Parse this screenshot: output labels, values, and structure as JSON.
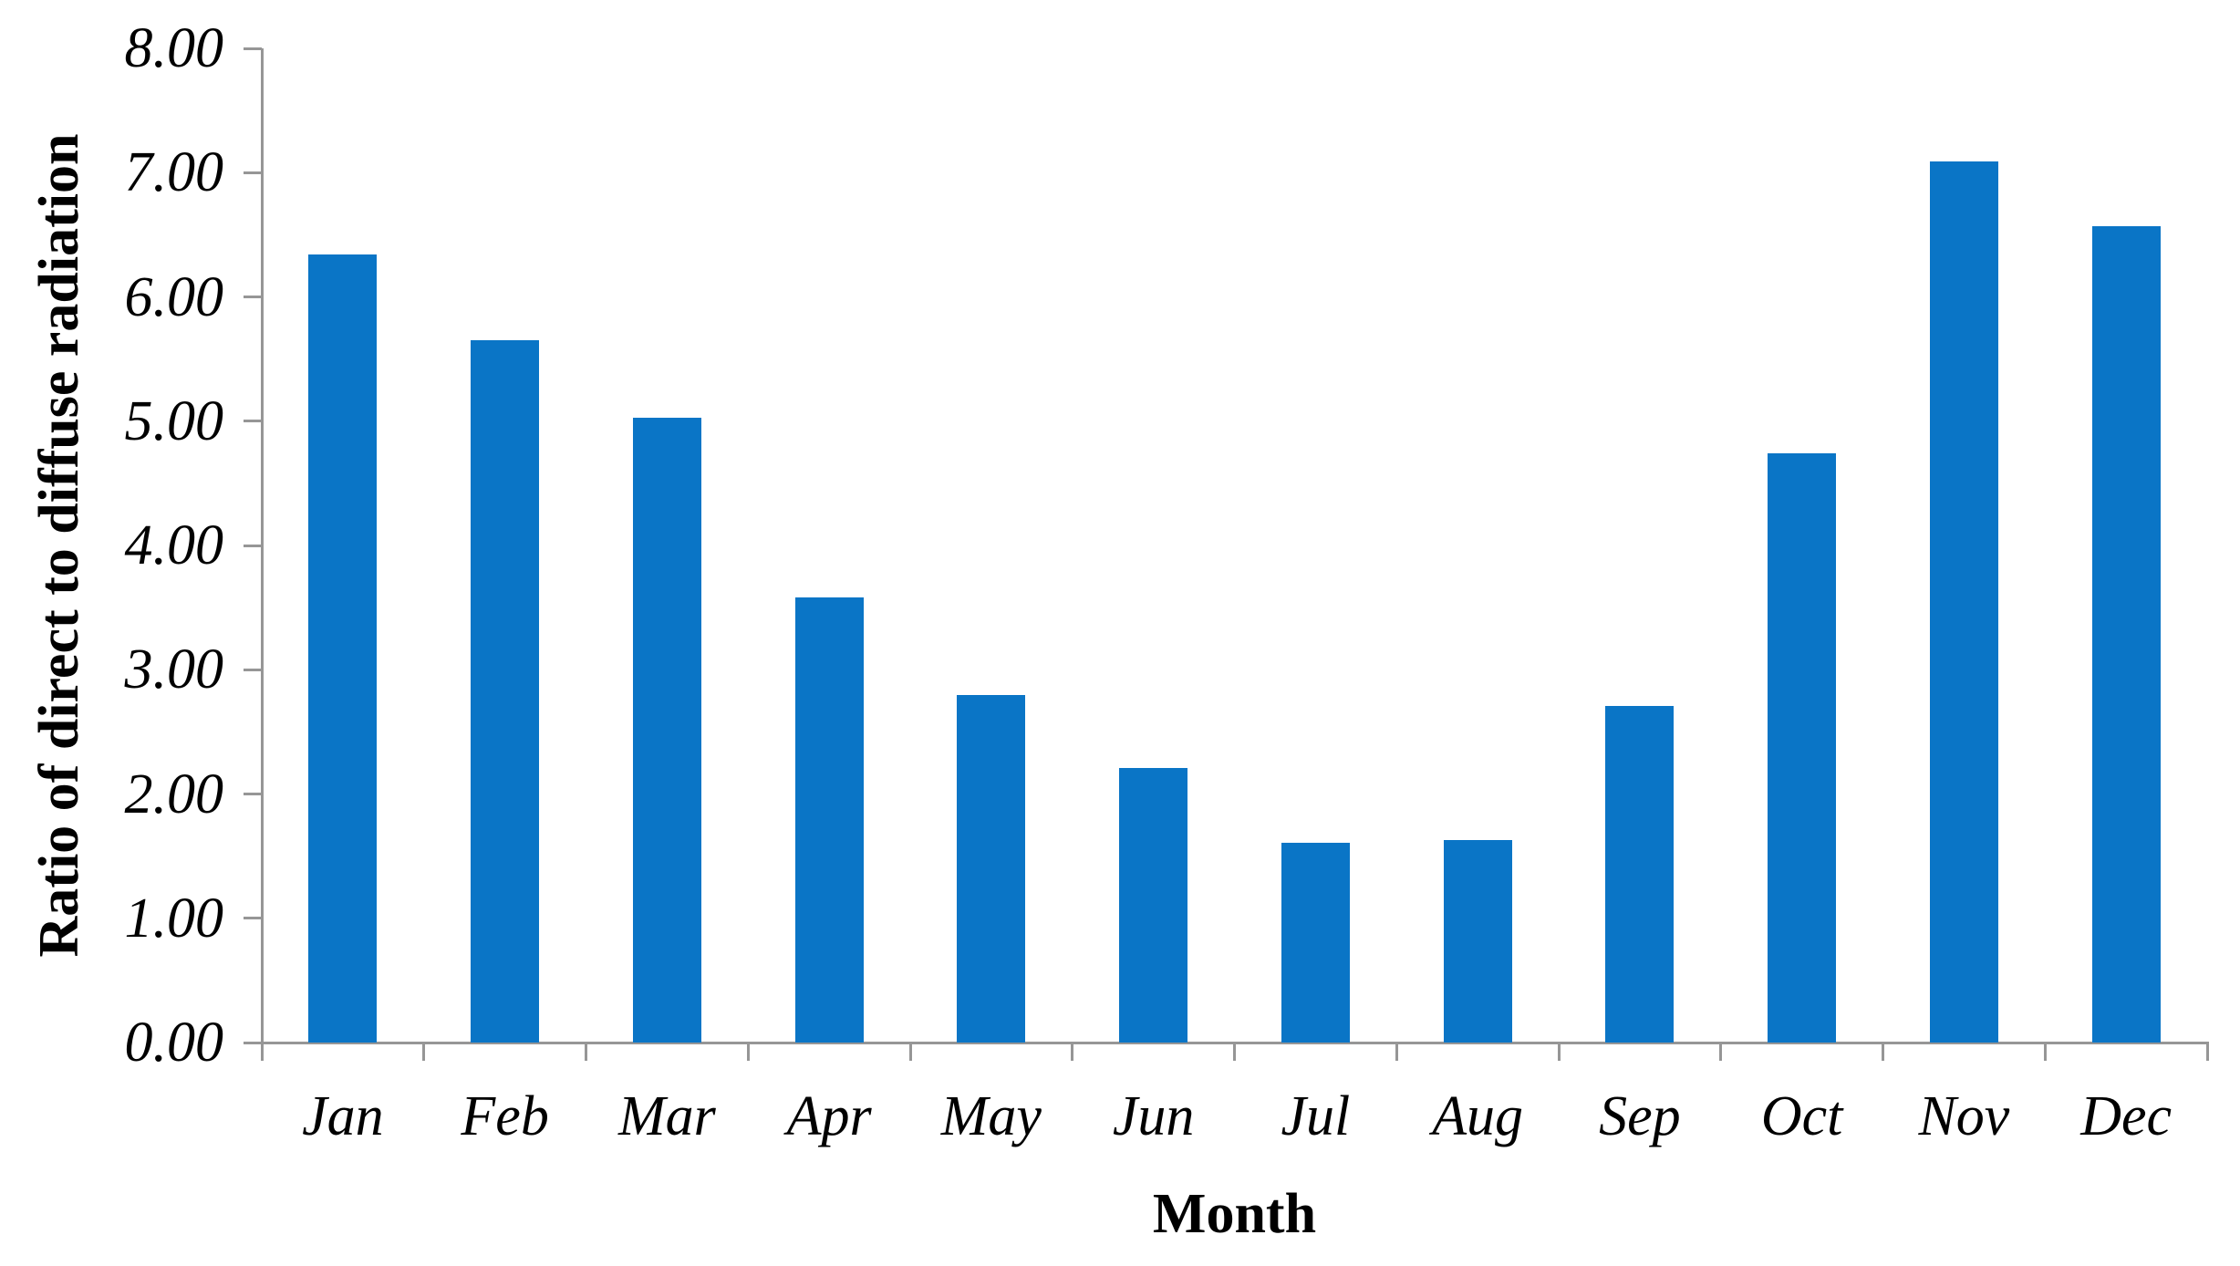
{
  "chart_data": {
    "type": "bar",
    "title": "",
    "xlabel": "Month",
    "ylabel": "Ratio of direct to diffuse radiation",
    "categories": [
      "Jan",
      "Feb",
      "Mar",
      "Apr",
      "May",
      "Jun",
      "Jul",
      "Aug",
      "Sep",
      "Oct",
      "Nov",
      "Dec"
    ],
    "values": [
      6.34,
      5.65,
      5.03,
      3.58,
      2.8,
      2.21,
      1.61,
      1.63,
      2.71,
      4.74,
      7.09,
      6.57
    ],
    "ylim": [
      0,
      8
    ],
    "ytick_step": 1,
    "ytick_labels": [
      "0.00",
      "1.00",
      "2.00",
      "3.00",
      "4.00",
      "5.00",
      "6.00",
      "7.00",
      "8.00"
    ],
    "grid": false,
    "legend": null,
    "bar_color": "#0a75c6",
    "axis_color": "#969696",
    "text_color": "#000000"
  }
}
